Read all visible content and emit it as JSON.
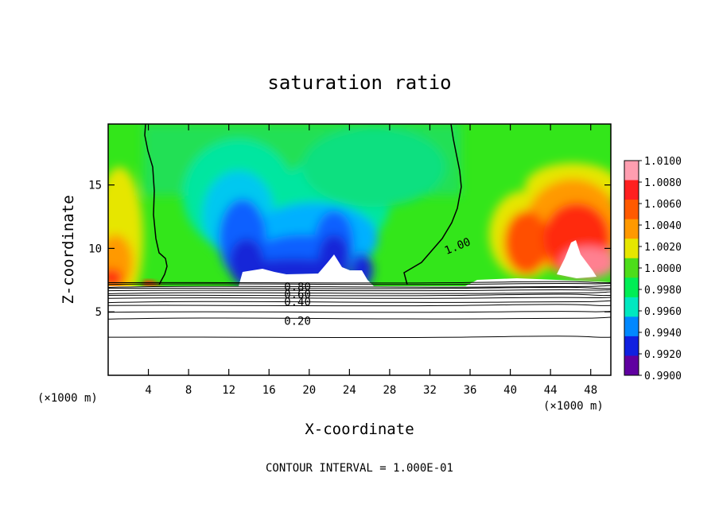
{
  "chart_data": {
    "type": "heatmap",
    "title": "saturation ratio",
    "xlabel": "X-coordinate",
    "ylabel": "Z-coordinate",
    "x_unit_left": "(×1000 m)",
    "x_unit_right": "(×1000 m)",
    "footer": "CONTOUR INTERVAL = 1.000E-01",
    "xlim": [
      0,
      50
    ],
    "ylim": [
      0,
      19.8
    ],
    "x_ticks": [
      4,
      8,
      12,
      16,
      20,
      24,
      28,
      32,
      36,
      40,
      44,
      48
    ],
    "y_ticks": [
      5,
      10,
      15
    ],
    "colorbar": {
      "range": [
        0.99,
        1.01
      ],
      "labels": [
        "1.0100",
        "1.0080",
        "1.0060",
        "1.0040",
        "1.0020",
        "1.0000",
        "0.9980",
        "0.9960",
        "0.9940",
        "0.9920",
        "0.9900"
      ],
      "colors": [
        "#ff9eb0",
        "#ff2020",
        "#ff5a00",
        "#ff9900",
        "#e6e600",
        "#4ddd1a",
        "#00ee55",
        "#00e8c0",
        "#0088ff",
        "#1020e0",
        "#6000a0"
      ]
    },
    "contour_labels": [
      {
        "text": "1.00",
        "x": 33.5,
        "z": 9.8
      },
      {
        "text": "0.80",
        "x": 17.5,
        "z": 7.0
      },
      {
        "text": "0.60",
        "x": 17.5,
        "z": 6.4
      },
      {
        "text": "0.40",
        "x": 17.5,
        "z": 5.8
      },
      {
        "text": "0.20",
        "x": 17.5,
        "z": 4.3
      }
    ],
    "contour_lines_z": [
      7.3,
      7.2,
      7.0,
      6.85,
      6.7,
      6.5,
      6.3,
      6.1,
      5.8,
      5.5,
      5.0,
      4.5,
      3.0
    ]
  }
}
